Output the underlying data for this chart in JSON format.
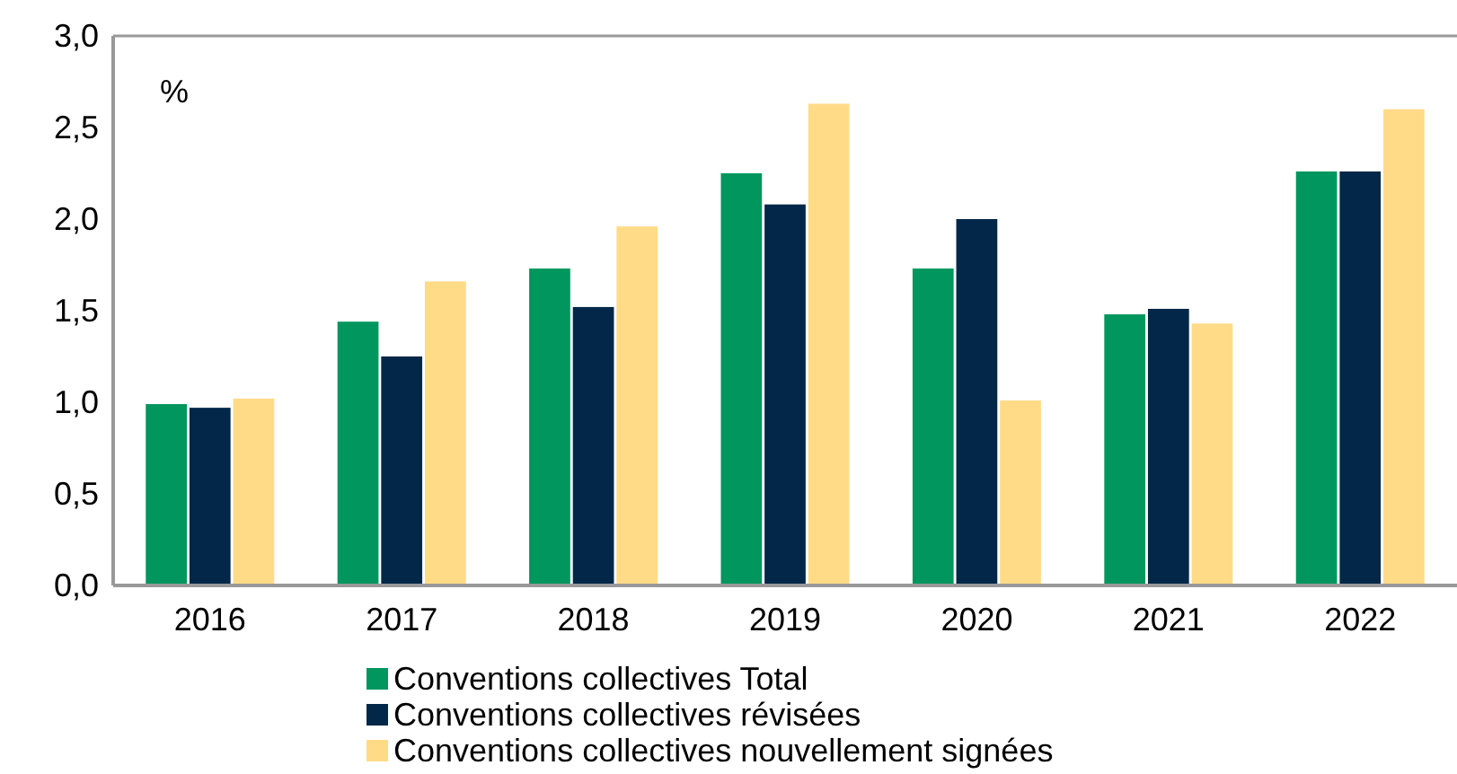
{
  "chart_data": {
    "type": "bar",
    "categories": [
      "2016",
      "2017",
      "2018",
      "2019",
      "2020",
      "2021",
      "2022"
    ],
    "series": [
      {
        "name": "Conventions collectives Total",
        "color": "#00965e",
        "values": [
          0.99,
          1.44,
          1.73,
          2.25,
          1.73,
          1.48,
          2.26
        ]
      },
      {
        "name": "Conventions collectives révisées",
        "color": "#032748",
        "values": [
          0.97,
          1.25,
          1.52,
          2.08,
          2.0,
          1.51,
          2.26
        ]
      },
      {
        "name": "Conventions collectives nouvellement signées",
        "color": "#ffdb88",
        "values": [
          1.02,
          1.66,
          1.96,
          2.63,
          1.01,
          1.43,
          2.6
        ]
      }
    ],
    "ylim": [
      0,
      3
    ],
    "yticks": [
      {
        "value": 0,
        "label": "0,0"
      },
      {
        "value": 0.5,
        "label": "0,5"
      },
      {
        "value": 1,
        "label": "1,0"
      },
      {
        "value": 1.5,
        "label": "1,5"
      },
      {
        "value": 2,
        "label": "2,0"
      },
      {
        "value": 2.5,
        "label": "2,5"
      },
      {
        "value": 3,
        "label": "3,0"
      }
    ],
    "annotations": [
      "%"
    ],
    "grid": false,
    "legend": "bottom"
  }
}
